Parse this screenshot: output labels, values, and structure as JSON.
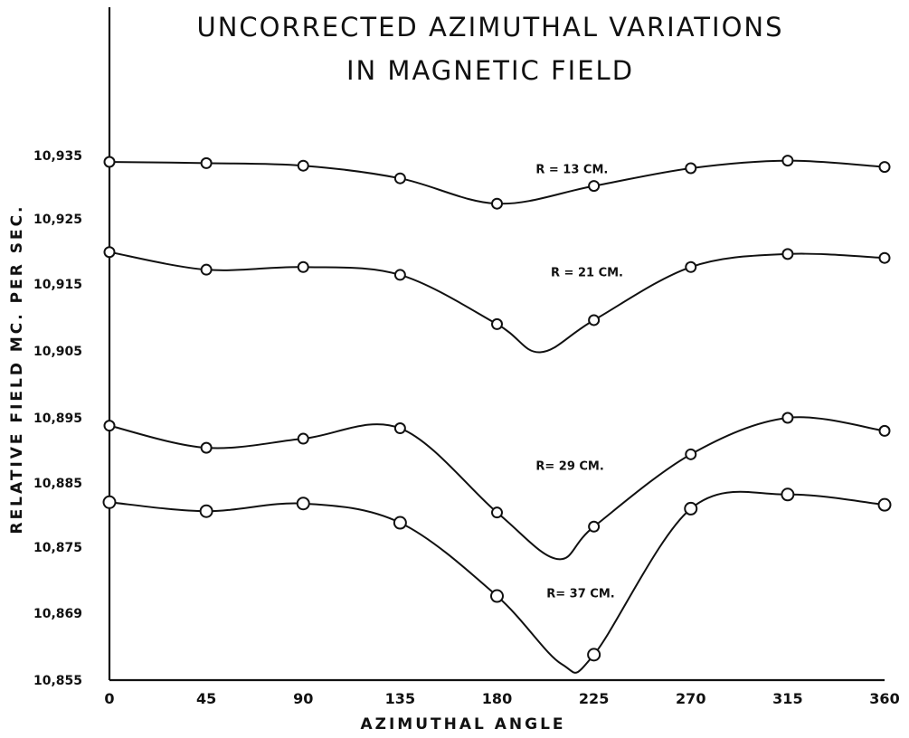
{
  "chart_data": {
    "type": "line",
    "title": [
      "UNCORRECTED AZIMUTHAL VARIATIONS",
      "IN MAGNETIC FIELD"
    ],
    "xlabel": "AZIMUTHAL ANGLE",
    "ylabel": "RELATIVE FIELD MC. PER SEC.",
    "x_ticks": [
      "0",
      "45",
      "90",
      "135",
      "180",
      "225",
      "270",
      "315",
      "360"
    ],
    "y_ticks": [
      "10,935",
      "10,925",
      "10,915",
      "10,905",
      "10,895",
      "10,885",
      "10,875",
      "10,869",
      "10,855"
    ],
    "xlim": [
      0,
      360
    ],
    "ylim": [
      10855,
      10937
    ],
    "grid": false,
    "legend": "none",
    "x": [
      0,
      45,
      90,
      135,
      180,
      225,
      270,
      315,
      360
    ],
    "series": [
      {
        "name": "R = 13 CM.",
        "values": [
          10934.0,
          10933.8,
          10933.4,
          10931.4,
          10927.4,
          10930.2,
          10933.0,
          10934.2,
          10933.2
        ]
      },
      {
        "name": "R = 21 CM.",
        "values": [
          10919.9,
          10917.2,
          10917.6,
          10916.4,
          10909.0,
          10909.6,
          10917.6,
          10919.6,
          10919.0
        ]
      },
      {
        "name": "R= 29 CM.",
        "values": [
          10893.8,
          10890.4,
          10891.8,
          10893.4,
          10880.4,
          10878.2,
          10889.4,
          10895.0,
          10893.0
        ]
      },
      {
        "name": "R= 37 CM.",
        "values": [
          10882.0,
          10880.6,
          10881.8,
          10878.8,
          10867.6,
          10858.8,
          10881.0,
          10883.2,
          10881.6
        ]
      }
    ],
    "series_label_x": [
      198,
      205,
      198,
      203
    ],
    "series_label_y": [
      10932.2,
      10916.2,
      10887.0,
      10867.4
    ],
    "curve_through": [
      [
        [
          0,
          10934.0
        ],
        [
          45,
          10933.8
        ],
        [
          90,
          10933.4
        ],
        [
          135,
          10931.4
        ],
        [
          180,
          10927.4
        ],
        [
          225,
          10930.2
        ],
        [
          270,
          10933.0
        ],
        [
          315,
          10934.2
        ],
        [
          360,
          10933.2
        ]
      ],
      [
        [
          0,
          10919.9
        ],
        [
          45,
          10917.2
        ],
        [
          90,
          10917.6
        ],
        [
          135,
          10916.4
        ],
        [
          180,
          10909.0
        ],
        [
          200,
          10904.8
        ],
        [
          225,
          10909.6
        ],
        [
          270,
          10917.6
        ],
        [
          315,
          10919.6
        ],
        [
          360,
          10919.0
        ]
      ],
      [
        [
          0,
          10893.8
        ],
        [
          45,
          10890.4
        ],
        [
          90,
          10891.8
        ],
        [
          135,
          10893.4
        ],
        [
          180,
          10880.4
        ],
        [
          208,
          10873.2
        ],
        [
          225,
          10878.2
        ],
        [
          270,
          10889.4
        ],
        [
          315,
          10895.0
        ],
        [
          360,
          10893.0
        ]
      ],
      [
        [
          0,
          10882.0
        ],
        [
          45,
          10880.6
        ],
        [
          90,
          10881.8
        ],
        [
          135,
          10878.8
        ],
        [
          180,
          10867.6
        ],
        [
          210,
          10857.4
        ],
        [
          225,
          10858.8
        ],
        [
          270,
          10881.0
        ],
        [
          315,
          10883.2
        ],
        [
          360,
          10881.6
        ]
      ]
    ]
  }
}
